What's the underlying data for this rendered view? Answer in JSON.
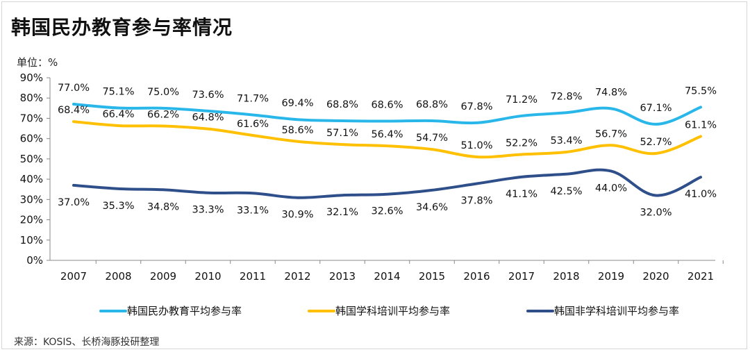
{
  "title": "韩国民办教育参与率情况",
  "unit_label": "单位：%",
  "source": "来源：KOSIS、长桥海豚投研整理",
  "colors": {
    "series1": "#29b7ea",
    "series2": "#ffc000",
    "series3": "#2f4f8a",
    "axis": "#888888"
  },
  "chart_data": {
    "type": "line",
    "x": [
      "2007",
      "2008",
      "2009",
      "2010",
      "2011",
      "2012",
      "2013",
      "2014",
      "2015",
      "2016",
      "2017",
      "2018",
      "2019",
      "2020",
      "2021"
    ],
    "ylim": [
      0,
      90
    ],
    "yticks": [
      "0%",
      "10%",
      "20%",
      "30%",
      "40%",
      "50%",
      "60%",
      "70%",
      "80%",
      "90%"
    ],
    "grid": false,
    "legend_position": "bottom",
    "series": [
      {
        "name": "韩国民办教育平均参与率",
        "values": [
          77.0,
          75.1,
          75.0,
          73.6,
          71.7,
          69.4,
          68.8,
          68.6,
          68.8,
          67.8,
          71.2,
          72.8,
          74.8,
          67.1,
          75.5
        ],
        "labels": [
          "77.0%",
          "75.1%",
          "75.0%",
          "73.6%",
          "71.7%",
          "69.4%",
          "68.8%",
          "68.6%",
          "68.8%",
          "67.8%",
          "71.2%",
          "72.8%",
          "74.8%",
          "67.1%",
          "75.5%"
        ]
      },
      {
        "name": "韩国学科培训平均参与率",
        "values": [
          68.4,
          66.4,
          66.2,
          64.8,
          61.6,
          58.6,
          57.1,
          56.4,
          54.7,
          51.0,
          52.2,
          53.4,
          56.7,
          52.7,
          61.1
        ],
        "labels": [
          "68.4%",
          "66.4%",
          "66.2%",
          "64.8%",
          "61.6%",
          "58.6%",
          "57.1%",
          "56.4%",
          "54.7%",
          "51.0%",
          "52.2%",
          "53.4%",
          "56.7%",
          "52.7%",
          "61.1%"
        ]
      },
      {
        "name": "韩国非学科培训平均参与率",
        "values": [
          37.0,
          35.3,
          34.8,
          33.3,
          33.1,
          30.9,
          32.1,
          32.6,
          34.6,
          37.8,
          41.1,
          42.5,
          44.0,
          32.0,
          41.0
        ],
        "labels": [
          "37.0%",
          "35.3%",
          "34.8%",
          "33.3%",
          "33.1%",
          "30.9%",
          "32.1%",
          "32.6%",
          "34.6%",
          "37.8%",
          "41.1%",
          "42.5%",
          "44.0%",
          "32.0%",
          "41.0%"
        ]
      }
    ]
  }
}
